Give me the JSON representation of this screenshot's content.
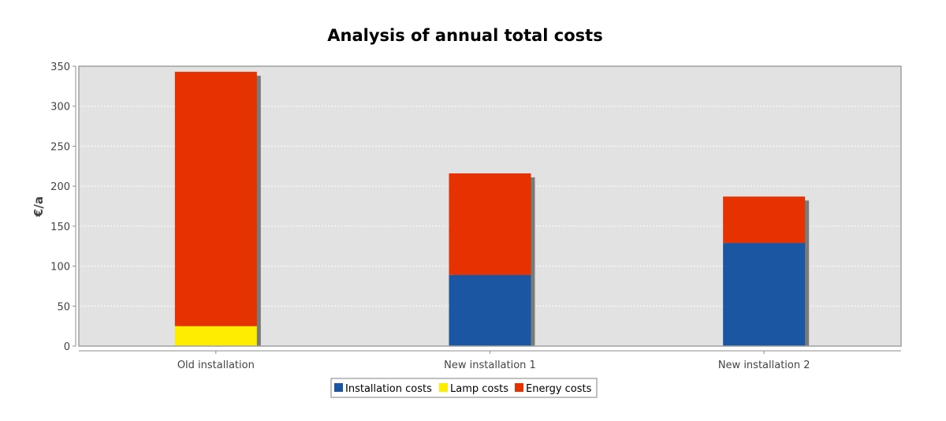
{
  "chart_data": {
    "type": "bar",
    "stacked": true,
    "title": "Analysis of annual total costs",
    "xlabel": "",
    "ylabel": "€/a",
    "ylim": [
      0,
      350
    ],
    "yticks": [
      0,
      50,
      100,
      150,
      200,
      250,
      300,
      350
    ],
    "grid": true,
    "legend_position": "bottom",
    "categories": [
      "Old installation",
      "New installation 1",
      "New installation 2"
    ],
    "series": [
      {
        "name": "Installation costs",
        "color": "#1a56a2",
        "values": [
          0,
          89,
          129
        ]
      },
      {
        "name": "Lamp costs",
        "color": "#ffed00",
        "values": [
          25,
          0,
          0
        ]
      },
      {
        "name": "Energy costs",
        "color": "#e63200",
        "values": [
          318,
          127,
          58
        ]
      }
    ]
  }
}
